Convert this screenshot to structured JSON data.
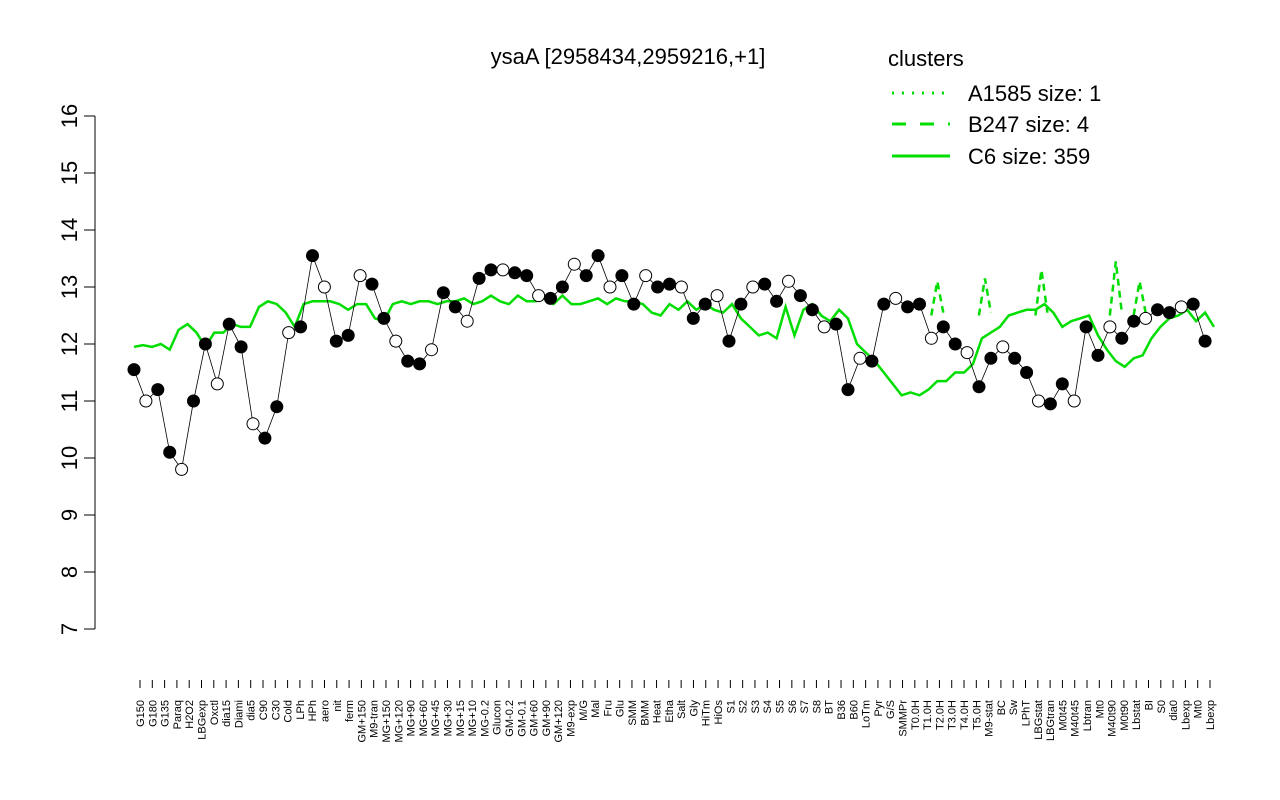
{
  "colors": {
    "cluster_line": "#00dd00",
    "point_fill_dark": "#000000",
    "point_fill_light": "#ffffff",
    "axis": "#000000"
  },
  "chart_data": {
    "type": "line",
    "title": "ysaA [2958434,2959216,+1]",
    "ylim": [
      7,
      16
    ],
    "yticks": [
      7,
      8,
      9,
      10,
      11,
      12,
      13,
      14,
      15,
      16
    ],
    "legend": {
      "title": "clusters",
      "placement": "top-right",
      "entries": [
        {
          "label": "A1585 size: 1",
          "style": "dotted"
        },
        {
          "label": "B247 size: 4",
          "style": "dashed"
        },
        {
          "label": "C6 size: 359",
          "style": "solid"
        }
      ]
    },
    "x_labels": [
      "G150",
      "G180",
      "G135",
      "Paraq",
      "H2O2",
      "LBGexp",
      "Oxctl",
      "dia15",
      "Diami",
      "dia5",
      "C90",
      "C30",
      "Cold",
      "LPh",
      "HPh",
      "aero",
      "nit",
      "ferm",
      "GM+150",
      "M9-tran",
      "MG+150",
      "MG+120",
      "MG+90",
      "MG+60",
      "MG+45",
      "MG+30",
      "MG+15",
      "MG+10",
      "MG-0.2",
      "Glucon",
      "GM-0.2",
      "GM-0.1",
      "GM+60",
      "GM+90",
      "GM+120",
      "M9-exp",
      "M/G",
      "Mal",
      "Fru",
      "Glu",
      "SMM",
      "BMM",
      "Heat",
      "Etha",
      "Salt",
      "Gly",
      "HiTm",
      "HiOs",
      "S1",
      "S2",
      "S3",
      "S4",
      "S5",
      "S6",
      "S7",
      "S8",
      "BT",
      "B36",
      "B60",
      "LoTm",
      "Pyr",
      "G/S",
      "SMMPr",
      "T0.0H",
      "T1.0H",
      "T2.0H",
      "T3.0H",
      "T4.0H",
      "T5.0H",
      "M9-stat",
      "BC",
      "Sw",
      "LPhT",
      "LBGstat",
      "LBGtran",
      "M0t45",
      "M40t45",
      "Lbtran",
      "Mt0",
      "M40t90",
      "M0t90",
      "Lbstat",
      "BI",
      "S0",
      "dia0",
      "Lbexp",
      "Mt0",
      "Lbexp"
    ],
    "series": [
      {
        "style": "solid",
        "x": [
          0,
          3,
          6,
          9,
          12,
          15,
          18,
          21,
          24,
          27,
          30,
          33,
          36,
          39,
          42,
          45,
          48,
          51,
          54,
          57,
          60,
          63,
          66,
          69,
          72,
          75,
          78,
          81,
          84,
          87,
          90,
          93,
          96,
          99,
          102,
          105,
          108,
          111,
          114,
          117,
          120,
          123,
          126,
          129,
          132,
          135,
          138,
          141,
          144,
          147,
          150,
          153,
          156,
          159,
          162,
          165,
          168,
          171,
          174,
          177,
          180,
          183,
          186,
          189,
          192,
          195,
          198,
          201,
          204,
          207,
          210,
          213,
          216,
          219,
          222,
          225,
          228,
          231,
          234,
          237,
          240,
          243,
          246,
          249,
          252,
          255,
          258,
          261,
          264,
          267,
          270,
          273,
          276,
          279,
          282,
          285,
          288,
          291,
          294,
          297,
          300,
          303,
          306,
          309,
          312,
          315,
          318,
          321,
          324,
          327,
          330,
          333,
          336,
          339,
          342,
          345,
          348,
          351,
          354,
          357,
          360,
          363
        ],
        "values": [
          11.95,
          11.98,
          11.95,
          12.0,
          11.9,
          12.25,
          12.35,
          12.2,
          11.95,
          12.2,
          12.2,
          12.35,
          12.3,
          12.3,
          12.65,
          12.75,
          12.7,
          12.55,
          12.3,
          12.7,
          12.75,
          12.75,
          12.75,
          12.7,
          12.6,
          12.7,
          12.7,
          12.45,
          12.4,
          12.7,
          12.75,
          12.7,
          12.75,
          12.75,
          12.7,
          12.75,
          12.75,
          12.8,
          12.7,
          12.75,
          12.85,
          12.75,
          12.7,
          12.85,
          12.75,
          12.75,
          12.8,
          12.7,
          12.85,
          12.7,
          12.7,
          12.75,
          12.8,
          12.7,
          12.8,
          12.75,
          12.75,
          12.7,
          12.55,
          12.5,
          12.7,
          12.6,
          12.75,
          12.6,
          12.7,
          12.6,
          12.55,
          12.7,
          12.45,
          12.3,
          12.15,
          12.2,
          12.1,
          12.65,
          12.15,
          12.6,
          12.7,
          12.5,
          12.4,
          12.6,
          12.45,
          12.0,
          11.85,
          11.7,
          11.5,
          11.3,
          11.1,
          11.15,
          11.1,
          11.2,
          11.35,
          11.35,
          11.5,
          11.5,
          11.65,
          12.1,
          12.2,
          12.3,
          12.5,
          12.55,
          12.6,
          12.6,
          12.7,
          12.55,
          12.3,
          12.4,
          12.45,
          12.5,
          12.15,
          11.9,
          11.7,
          11.6,
          11.75,
          11.8,
          12.1,
          12.3,
          12.45,
          12.5,
          12.6,
          12.4,
          12.55,
          12.3
        ]
      }
    ],
    "points": {
      "x": [
        0,
        4,
        8,
        12,
        16,
        20,
        24,
        28,
        32,
        36,
        40,
        44,
        48,
        52,
        56,
        60,
        64,
        68,
        72,
        76,
        80,
        84,
        88,
        92,
        96,
        100,
        104,
        108,
        112,
        116,
        120,
        124,
        128,
        132,
        136,
        140,
        144,
        148,
        152,
        156,
        160,
        164,
        168,
        172,
        176,
        180,
        184,
        188,
        192,
        196,
        200,
        204,
        208,
        212,
        216,
        220,
        224,
        228,
        232,
        236,
        240,
        244,
        248,
        252,
        256,
        260,
        264,
        268,
        272,
        276,
        280,
        284,
        288,
        292,
        296,
        300,
        304,
        308,
        312,
        316,
        320,
        324,
        328,
        332,
        336,
        340,
        344,
        348,
        352,
        356,
        360
      ],
      "values": [
        11.55,
        11.0,
        11.2,
        10.1,
        9.8,
        11.0,
        12.0,
        11.3,
        12.35,
        11.95,
        10.6,
        10.35,
        10.9,
        12.2,
        12.3,
        13.55,
        13.0,
        12.05,
        12.15,
        13.2,
        13.05,
        12.45,
        12.05,
        11.7,
        11.65,
        11.9,
        12.9,
        12.65,
        12.4,
        13.15,
        13.3,
        13.3,
        13.25,
        13.2,
        12.85,
        12.8,
        13.0,
        13.4,
        13.2,
        13.55,
        13.0,
        13.2,
        12.7,
        13.2,
        13.0,
        13.05,
        13.0,
        12.45,
        12.7,
        12.85,
        12.05,
        12.7,
        13.0,
        13.05,
        12.75,
        13.1,
        12.85,
        12.6,
        12.3,
        12.35,
        11.2,
        11.75,
        11.7,
        12.7,
        12.8,
        12.65,
        12.7,
        12.1,
        12.3,
        12.0,
        11.85,
        11.25,
        11.75,
        11.95,
        11.75,
        11.5,
        11.0,
        10.95,
        11.3,
        11.0,
        12.3,
        11.8,
        12.3,
        12.1,
        12.4,
        12.45,
        12.6,
        12.55,
        12.65,
        12.7,
        12.05
      ]
    }
  }
}
